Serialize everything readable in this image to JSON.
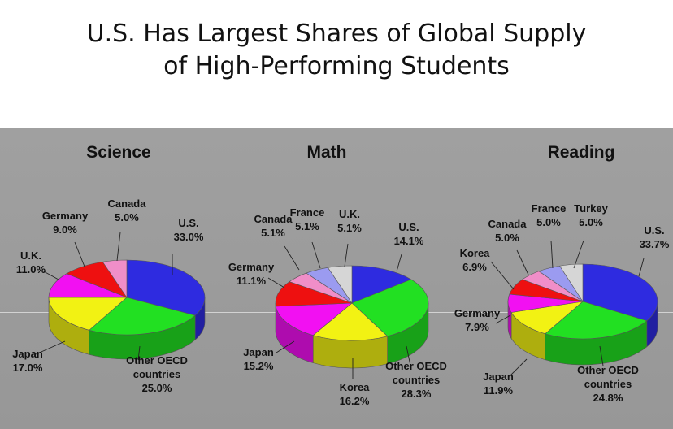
{
  "title_line1": "U.S. Has Largest Shares of Global Supply",
  "title_line2": "of High-Performing Students",
  "chart_data": [
    {
      "type": "pie",
      "title": "Science",
      "slices": [
        {
          "label": "U.S.",
          "value": 33.0,
          "value_text": "33.0%",
          "color": "#2e2be0"
        },
        {
          "label": "Other OECD countries",
          "value": 25.0,
          "value_text": "25.0%",
          "color": "#22e022"
        },
        {
          "label": "Japan",
          "value": 17.0,
          "value_text": "17.0%",
          "color": "#f2f213"
        },
        {
          "label": "U.K.",
          "value": 11.0,
          "value_text": "11.0%",
          "color": "#f210f2"
        },
        {
          "label": "Germany",
          "value": 9.0,
          "value_text": "9.0%",
          "color": "#ee1010"
        },
        {
          "label": "Canada",
          "value": 5.0,
          "value_text": "5.0%",
          "color": "#f08ec8"
        }
      ]
    },
    {
      "type": "pie",
      "title": "Math",
      "slices": [
        {
          "label": "U.S.",
          "value": 14.1,
          "value_text": "14.1%",
          "color": "#2e2be0"
        },
        {
          "label": "Other OECD countries",
          "value": 28.3,
          "value_text": "28.3%",
          "color": "#22e022"
        },
        {
          "label": "Korea",
          "value": 16.2,
          "value_text": "16.2%",
          "color": "#f2f213"
        },
        {
          "label": "Japan",
          "value": 15.2,
          "value_text": "15.2%",
          "color": "#f210f2"
        },
        {
          "label": "Germany",
          "value": 11.1,
          "value_text": "11.1%",
          "color": "#ee1010"
        },
        {
          "label": "Canada",
          "value": 5.1,
          "value_text": "5.1%",
          "color": "#f08ec8"
        },
        {
          "label": "France",
          "value": 5.1,
          "value_text": "5.1%",
          "color": "#9b9bf0"
        },
        {
          "label": "U.K.",
          "value": 5.1,
          "value_text": "5.1%",
          "color": "#d6d6d6"
        }
      ]
    },
    {
      "type": "pie",
      "title": "Reading",
      "slices": [
        {
          "label": "U.S.",
          "value": 33.7,
          "value_text": "33.7%",
          "color": "#2e2be0"
        },
        {
          "label": "Other OECD countries",
          "value": 24.8,
          "value_text": "24.8%",
          "color": "#22e022"
        },
        {
          "label": "Japan",
          "value": 11.9,
          "value_text": "11.9%",
          "color": "#f2f213"
        },
        {
          "label": "Germany",
          "value": 7.9,
          "value_text": "7.9%",
          "color": "#f210f2"
        },
        {
          "label": "Korea",
          "value": 6.9,
          "value_text": "6.9%",
          "color": "#ee1010"
        },
        {
          "label": "Canada",
          "value": 5.0,
          "value_text": "5.0%",
          "color": "#f08ec8"
        },
        {
          "label": "France",
          "value": 5.0,
          "value_text": "5.0%",
          "color": "#9b9bf0"
        },
        {
          "label": "Turkey",
          "value": 5.0,
          "value_text": "5.0%",
          "color": "#d6d6d6"
        }
      ]
    }
  ]
}
